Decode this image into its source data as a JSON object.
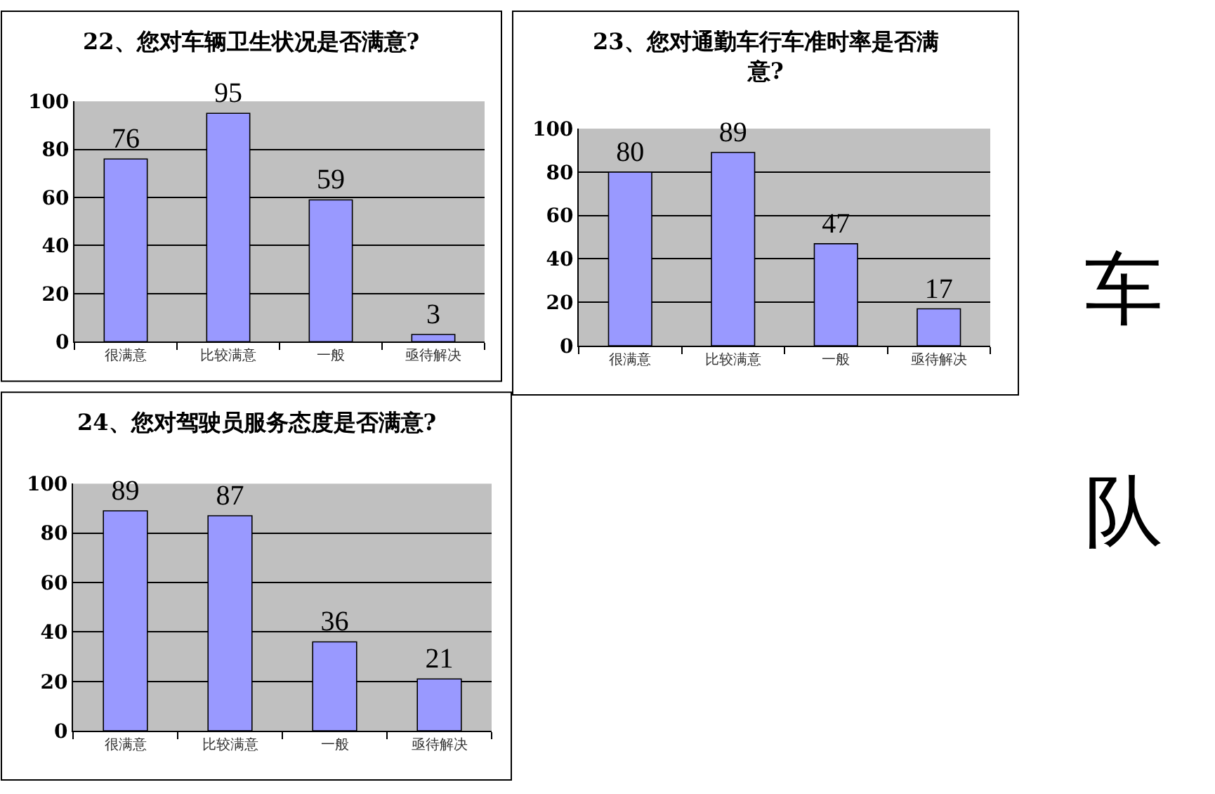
{
  "chart_data": [
    {
      "type": "bar",
      "title": "22、您对车辆卫生状况是否满意?",
      "categories": [
        "很满意",
        "比较满意",
        "一般",
        "亟待解决"
      ],
      "values": [
        76,
        95,
        59,
        3
      ],
      "color": "#9999ff",
      "ylim": [
        0,
        100
      ],
      "yticks": [
        0,
        20,
        40,
        60,
        80,
        100
      ],
      "grid": "y",
      "data_labels": true
    },
    {
      "type": "bar",
      "title": "23、您对通勤车行车准时率是否满意?",
      "categories": [
        "很满意",
        "比较满意",
        "一般",
        "亟待解决"
      ],
      "values": [
        80,
        89,
        47,
        17
      ],
      "color": "#9999ff",
      "ylim": [
        0,
        100
      ],
      "yticks": [
        0,
        20,
        40,
        60,
        80,
        100
      ],
      "grid": "y",
      "data_labels": true
    },
    {
      "type": "bar",
      "title": "24、您对驾驶员服务态度是否满意?",
      "categories": [
        "很满意",
        "比较满意",
        "一般",
        "亟待解决"
      ],
      "values": [
        89,
        87,
        36,
        21
      ],
      "color": "#9999ff",
      "ylim": [
        0,
        100
      ],
      "yticks": [
        0,
        20,
        40,
        60,
        80,
        100
      ],
      "grid": "y",
      "data_labels": true
    },
    {
      "type": "other",
      "annotations": [
        "车",
        "队"
      ]
    }
  ]
}
